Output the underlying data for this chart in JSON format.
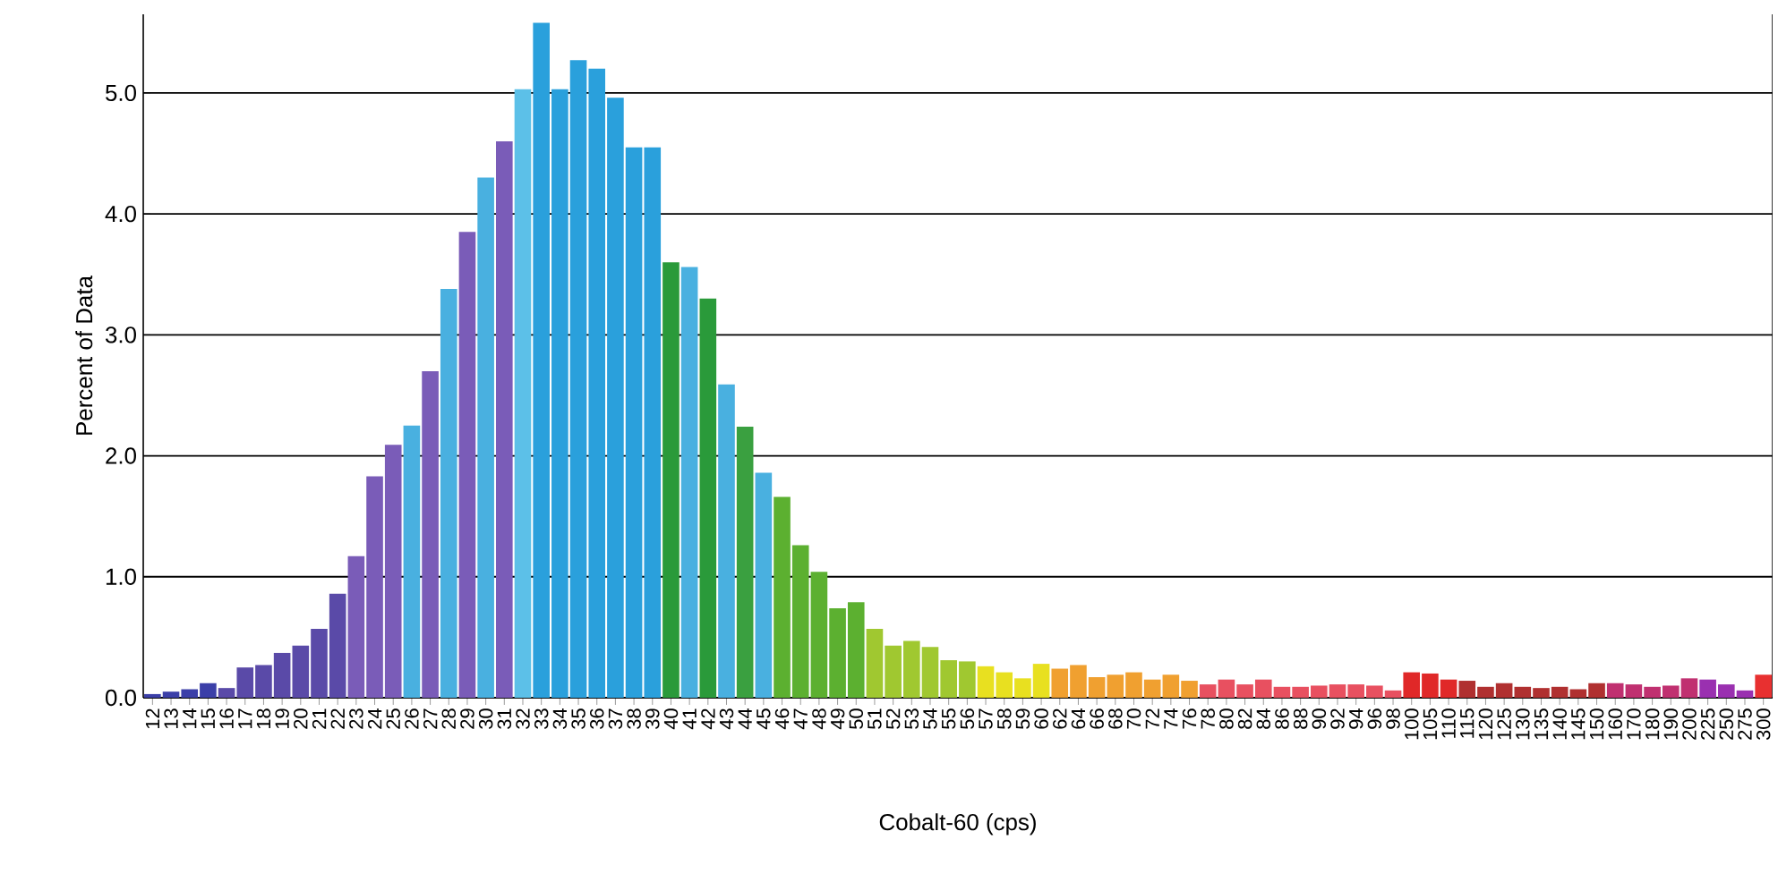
{
  "chart_data": {
    "type": "bar",
    "xlabel": "Cobalt-60 (cps)",
    "ylabel": "Percent of Data",
    "categories": [
      "12",
      "13",
      "14",
      "15",
      "16",
      "17",
      "18",
      "19",
      "20",
      "21",
      "22",
      "23",
      "24",
      "25",
      "26",
      "27",
      "28",
      "29",
      "30",
      "31",
      "32",
      "33",
      "34",
      "35",
      "36",
      "37",
      "38",
      "39",
      "40",
      "41",
      "42",
      "43",
      "44",
      "45",
      "46",
      "47",
      "48",
      "49",
      "50",
      "51",
      "52",
      "53",
      "54",
      "55",
      "56",
      "57",
      "58",
      "59",
      "60",
      "62",
      "64",
      "66",
      "68",
      "70",
      "72",
      "74",
      "76",
      "78",
      "80",
      "82",
      "84",
      "86",
      "88",
      "90",
      "92",
      "94",
      "96",
      "98",
      "100",
      "105",
      "110",
      "115",
      "120",
      "125",
      "130",
      "135",
      "140",
      "145",
      "150",
      "160",
      "170",
      "180",
      "190",
      "200",
      "225",
      "250",
      "275",
      "300"
    ],
    "values": [
      0.03,
      0.05,
      0.07,
      0.12,
      0.08,
      0.25,
      0.27,
      0.37,
      0.43,
      0.57,
      0.86,
      1.17,
      1.83,
      2.09,
      2.25,
      2.7,
      3.38,
      3.85,
      4.3,
      4.6,
      5.03,
      5.58,
      5.03,
      5.27,
      5.2,
      4.96,
      4.55,
      4.55,
      3.6,
      3.56,
      3.3,
      2.59,
      2.24,
      1.86,
      1.66,
      1.26,
      1.04,
      0.74,
      0.79,
      0.57,
      0.43,
      0.47,
      0.42,
      0.31,
      0.3,
      0.26,
      0.21,
      0.16,
      0.28,
      0.24,
      0.27,
      0.17,
      0.19,
      0.21,
      0.15,
      0.19,
      0.14,
      0.11,
      0.15,
      0.11,
      0.15,
      0.09,
      0.09,
      0.1,
      0.11,
      0.11,
      0.1,
      0.06,
      0.21,
      0.2,
      0.15,
      0.14,
      0.09,
      0.12,
      0.09,
      0.08,
      0.09,
      0.07,
      0.12,
      0.12,
      0.11,
      0.09,
      0.1,
      0.16,
      0.15,
      0.11,
      0.06,
      0.19
    ],
    "colors": [
      "#3b3fa8",
      "#3b3fa8",
      "#3b3fa8",
      "#3b3fa8",
      "#5a4aa8",
      "#5a4aa8",
      "#5a4aa8",
      "#5a4aa8",
      "#5a4aa8",
      "#5a4aa8",
      "#5a4aa8",
      "#7a5cb8",
      "#7a5cb8",
      "#7a5cb8",
      "#49b0e0",
      "#7a5cb8",
      "#49b0e0",
      "#7a5cb8",
      "#49b0e0",
      "#7a5cb8",
      "#5cc0e8",
      "#2aa0dc",
      "#2aa0dc",
      "#2aa0dc",
      "#2aa0dc",
      "#2aa0dc",
      "#2aa0dc",
      "#2aa0dc",
      "#2a9a3a",
      "#49b0e0",
      "#2a9a3a",
      "#49b0e0",
      "#3aa040",
      "#49b0e0",
      "#5cb030",
      "#5cb030",
      "#5cb030",
      "#5cb030",
      "#5cb030",
      "#a0c830",
      "#a0c830",
      "#a0c830",
      "#a0c830",
      "#a0c830",
      "#a0c830",
      "#e8e020",
      "#e8e020",
      "#e8e020",
      "#e8e020",
      "#f0a030",
      "#f0a030",
      "#f0a030",
      "#f0a030",
      "#f0a030",
      "#f0a030",
      "#f0a030",
      "#f0a030",
      "#e85060",
      "#e85060",
      "#e85060",
      "#e85060",
      "#e85060",
      "#e85060",
      "#e85060",
      "#e85060",
      "#e85060",
      "#e85060",
      "#e85060",
      "#e02828",
      "#e02828",
      "#e02828",
      "#b03030",
      "#b03030",
      "#b03030",
      "#b03030",
      "#b03030",
      "#b03030",
      "#b03030",
      "#b03030",
      "#c03070",
      "#c03070",
      "#c03070",
      "#c03070",
      "#c03070",
      "#9a30b0",
      "#9a30b0",
      "#9a30b0",
      "#e83030"
    ],
    "ylim": [
      0,
      5.65
    ],
    "yticks": [
      {
        "value": 0,
        "label": "0.0"
      },
      {
        "value": 1,
        "label": "1.0"
      },
      {
        "value": 2,
        "label": "2.0"
      },
      {
        "value": 3,
        "label": "3.0"
      },
      {
        "value": 4,
        "label": "4.0"
      },
      {
        "value": 5,
        "label": "5.0"
      }
    ],
    "grid": "y"
  }
}
